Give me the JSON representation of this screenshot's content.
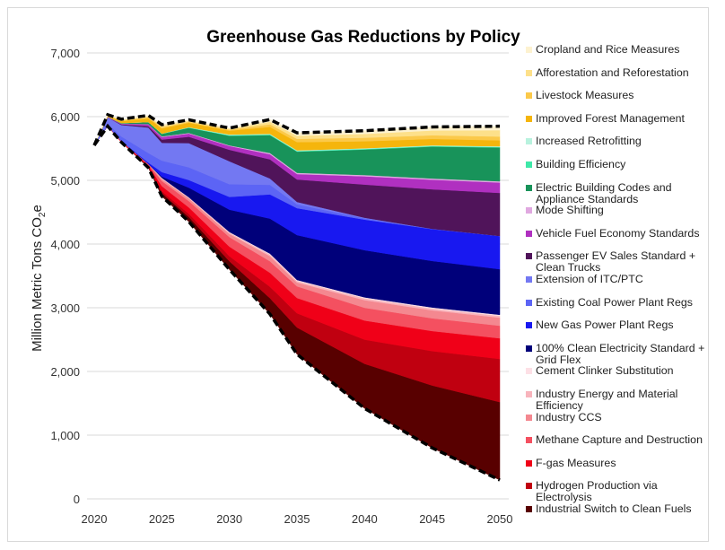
{
  "chart_data": {
    "type": "area",
    "stacked": true,
    "title": "Greenhouse Gas Reductions by Policy",
    "ylabel": "Million Metric Tons CO2e",
    "ylabel_main": "Million Metric Tons CO",
    "ylabel_sub": "2",
    "ylabel_tail": "e",
    "xlabel": "",
    "xlim": [
      2020,
      2050
    ],
    "ylim": [
      0,
      7000
    ],
    "x_ticks": [
      "2020",
      "2025",
      "2030",
      "2035",
      "2040",
      "2045",
      "2050"
    ],
    "y_ticks": [
      "0",
      "1,000",
      "2,000",
      "3,000",
      "4,000",
      "5,000",
      "6,000",
      "7,000"
    ],
    "grid": true,
    "legend_position": "right",
    "x": [
      2020,
      2021,
      2022,
      2024,
      2025,
      2027,
      2030,
      2033,
      2035,
      2040,
      2045,
      2050
    ],
    "policy_emissions_dashed": [
      5550,
      5850,
      5600,
      5200,
      4750,
      4350,
      3600,
      2900,
      2270,
      1420,
      800,
      296
    ],
    "series": [
      {
        "name": "Industrial Switch to Clean Fuels",
        "color": "#580000",
        "values": [
          0,
          5,
          0,
          15,
          50,
          75,
          130,
          250,
          420,
          700,
          980,
          1224
        ]
      },
      {
        "name": "Hydrogen Production via Electrolysis",
        "color": "#c00010",
        "values": [
          0,
          0,
          0,
          5,
          30,
          50,
          80,
          180,
          224,
          380,
          540,
          677
        ]
      },
      {
        "name": "F-gas Measures",
        "color": "#f00018",
        "values": [
          0,
          5,
          10,
          20,
          80,
          100,
          150,
          220,
          240,
          300,
          315,
          324
        ]
      },
      {
        "name": "Methane Capture and Destruction",
        "color": "#f45060",
        "values": [
          0,
          0,
          10,
          20,
          80,
          100,
          150,
          180,
          183,
          200,
          200,
          197
        ]
      },
      {
        "name": "Industry CCS",
        "color": "#f48890",
        "values": [
          0,
          0,
          0,
          0,
          30,
          40,
          50,
          80,
          60,
          120,
          125,
          127
        ]
      },
      {
        "name": "Industry Energy and Material Efficiency",
        "color": "#f8b4bc",
        "values": [
          0,
          0,
          0,
          0,
          15,
          15,
          20,
          25,
          25,
          28,
          28,
          28
        ]
      },
      {
        "name": "Cement Clinker Substitution",
        "color": "#fde0e6",
        "values": [
          0,
          0,
          0,
          0,
          5,
          5,
          10,
          15,
          15,
          16,
          17,
          17
        ]
      },
      {
        "name": "100% Clean Electricity Standard + Grid Flex",
        "color": "#00007a",
        "values": [
          0,
          0,
          0,
          0,
          20,
          150,
          350,
          550,
          704,
          740,
          730,
          716
        ]
      },
      {
        "name": "New Gas Power Plant Regs",
        "color": "#1818f0",
        "values": [
          0,
          0,
          0,
          20,
          70,
          120,
          200,
          380,
          423,
          480,
          500,
          521
        ]
      },
      {
        "name": "Existing Coal Power Plant Regs",
        "color": "#5c64f5",
        "values": [
          0,
          30,
          70,
          150,
          180,
          200,
          200,
          150,
          60,
          20,
          5,
          0
        ]
      },
      {
        "name": "Extension of ITC/PTC",
        "color": "#7378f2",
        "values": [
          0,
          100,
          180,
          400,
          280,
          380,
          360,
          100,
          38,
          10,
          0,
          0
        ]
      },
      {
        "name": "Passenger EV Sales Standard + Clean Trucks",
        "color": "#50145a",
        "values": [
          0,
          0,
          10,
          20,
          50,
          100,
          180,
          300,
          352,
          520,
          620,
          676
        ]
      },
      {
        "name": "Vehicle Fuel Economy Standards",
        "color": "#b030c0",
        "values": [
          0,
          10,
          10,
          30,
          40,
          50,
          60,
          80,
          85,
          130,
          150,
          163
        ]
      },
      {
        "name": "Mode Shifting",
        "color": "#e0a8e0",
        "values": [
          0,
          0,
          0,
          5,
          10,
          10,
          10,
          20,
          20,
          20,
          20,
          20
        ]
      },
      {
        "name": "Electric Building Codes and Appliance Standards",
        "color": "#18935a",
        "values": [
          0,
          0,
          10,
          30,
          40,
          80,
          150,
          280,
          332,
          400,
          500,
          529
        ]
      },
      {
        "name": "Building Efficiency",
        "color": "#3ee8a8",
        "values": [
          0,
          0,
          0,
          0,
          3,
          5,
          10,
          10,
          10,
          10,
          10,
          10
        ]
      },
      {
        "name": "Increased Retrofitting",
        "color": "#b8f2de",
        "values": [
          0,
          0,
          0,
          0,
          2,
          5,
          10,
          10,
          10,
          10,
          10,
          10
        ]
      },
      {
        "name": "Improved Forest Management",
        "color": "#f5b50c",
        "values": [
          0,
          15,
          30,
          60,
          80,
          70,
          60,
          110,
          130,
          110,
          100,
          93
        ]
      },
      {
        "name": "Livestock Measures",
        "color": "#fbc94a",
        "values": [
          0,
          5,
          10,
          15,
          20,
          15,
          15,
          40,
          50,
          55,
          58,
          60
        ]
      },
      {
        "name": "Afforestation and Reforestation",
        "color": "#fde08a",
        "values": [
          0,
          5,
          10,
          15,
          20,
          15,
          15,
          40,
          50,
          60,
          75,
          100
        ]
      },
      {
        "name": "Cropland and Rice Measures",
        "color": "#fdf2d0",
        "values": [
          0,
          5,
          10,
          15,
          20,
          15,
          10,
          35,
          45,
          50,
          55,
          62
        ]
      }
    ]
  }
}
